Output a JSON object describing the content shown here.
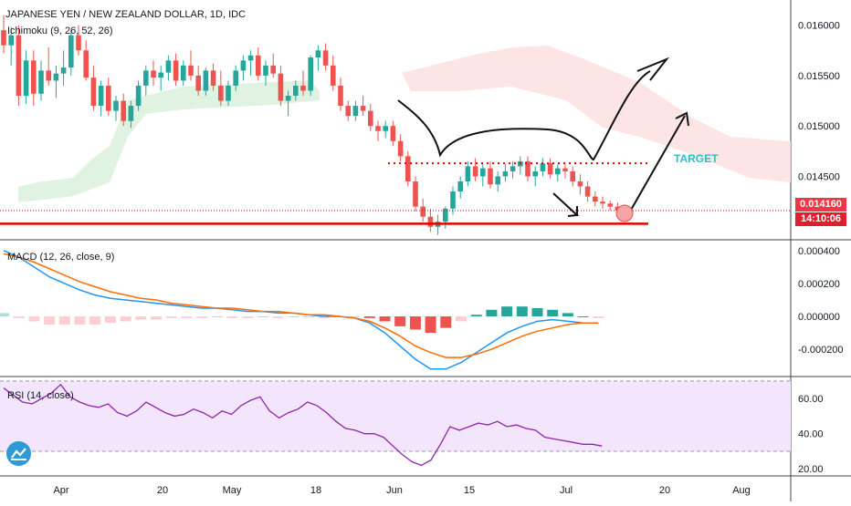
{
  "header": {
    "title": "JAPANESE YEN / NEW ZEALAND DOLLAR, 1D, IDC",
    "ichimoku_label": "Ichimoku (9, 26, 52, 26)",
    "macd_label": "MACD (12, 26, close, 9)",
    "rsi_label": "RSI (14, close)"
  },
  "annotation": {
    "target_label": "TARGET"
  },
  "price_tags": {
    "last_price": "0.014160",
    "countdown": "14:10:06"
  },
  "colors": {
    "up": "#26a69a",
    "down": "#ef5350",
    "macd_line": "#2196f3",
    "signal_line": "#ff6d00",
    "rsi_line": "#8e24aa",
    "rsi_band": "#f3e5fc",
    "cloud_bull": "#d8efd9",
    "cloud_bear": "#fde0e0",
    "accent_red": "#e00000",
    "target_text": "#2bbcc4"
  },
  "chart_data": [
    {
      "type": "candlestick",
      "title": "JAPANESE YEN / NEW ZEALAND DOLLAR, 1D, IDC",
      "y_ticks": [
        "0.016000",
        "0.015500",
        "0.015000",
        "0.014500"
      ],
      "ylim": [
        0.01388,
        0.01625
      ],
      "x_ticks": [
        "Apr",
        "20",
        "May",
        "18",
        "Jun",
        "15",
        "Jul",
        "20",
        "Aug"
      ],
      "x_tick_days": [
        3,
        22,
        31,
        50,
        64,
        79,
        93,
        108,
        121
      ],
      "dates_note": "day numbers counted from 2020-03-01 (Apr = day 31 offset handled by tick list)",
      "ohlc": [
        [
          0.01595,
          0.0161,
          0.01572,
          0.0158
        ],
        [
          0.0158,
          0.01598,
          0.0156,
          0.0159
        ],
        [
          0.0159,
          0.016,
          0.0152,
          0.0153
        ],
        [
          0.0153,
          0.01575,
          0.01522,
          0.01565
        ],
        [
          0.01565,
          0.01575,
          0.0152,
          0.01532
        ],
        [
          0.01532,
          0.01565,
          0.01525,
          0.01555
        ],
        [
          0.01555,
          0.01578,
          0.0154,
          0.01545
        ],
        [
          0.01545,
          0.0156,
          0.01528,
          0.01552
        ],
        [
          0.01552,
          0.01575,
          0.0154,
          0.01558
        ],
        [
          0.01558,
          0.01595,
          0.0155,
          0.0159
        ],
        [
          0.0159,
          0.016,
          0.0157,
          0.01575
        ],
        [
          0.01575,
          0.01585,
          0.01545,
          0.01548
        ],
        [
          0.01548,
          0.0156,
          0.01515,
          0.0152
        ],
        [
          0.0152,
          0.01545,
          0.0151,
          0.0154
        ],
        [
          0.0154,
          0.01548,
          0.0151,
          0.01515
        ],
        [
          0.01515,
          0.0153,
          0.01505,
          0.01525
        ],
        [
          0.01525,
          0.01532,
          0.015,
          0.01505
        ],
        [
          0.01505,
          0.01525,
          0.01498,
          0.0152
        ],
        [
          0.0152,
          0.01545,
          0.01515,
          0.0154
        ],
        [
          0.0154,
          0.0156,
          0.0153,
          0.01555
        ],
        [
          0.01555,
          0.01565,
          0.0154,
          0.01548
        ],
        [
          0.01548,
          0.0156,
          0.01535,
          0.01553
        ],
        [
          0.01553,
          0.0157,
          0.01545,
          0.01565
        ],
        [
          0.01565,
          0.01572,
          0.0154,
          0.01545
        ],
        [
          0.01545,
          0.01565,
          0.0154,
          0.0156
        ],
        [
          0.0156,
          0.01575,
          0.01545,
          0.0155
        ],
        [
          0.0155,
          0.0156,
          0.0153,
          0.01535
        ],
        [
          0.01535,
          0.01558,
          0.0153,
          0.01555
        ],
        [
          0.01555,
          0.01562,
          0.01535,
          0.0154
        ],
        [
          0.0154,
          0.01555,
          0.0152,
          0.01525
        ],
        [
          0.01525,
          0.01545,
          0.0152,
          0.0154
        ],
        [
          0.0154,
          0.0156,
          0.01535,
          0.01555
        ],
        [
          0.01555,
          0.0157,
          0.01545,
          0.01565
        ],
        [
          0.01565,
          0.01575,
          0.0155,
          0.0157
        ],
        [
          0.0157,
          0.01578,
          0.01545,
          0.0155
        ],
        [
          0.0155,
          0.01565,
          0.0154,
          0.0156
        ],
        [
          0.0156,
          0.01572,
          0.01548,
          0.01552
        ],
        [
          0.01552,
          0.0156,
          0.0152,
          0.01525
        ],
        [
          0.01525,
          0.01535,
          0.0151,
          0.0153
        ],
        [
          0.0153,
          0.01545,
          0.01525,
          0.0154
        ],
        [
          0.0154,
          0.01555,
          0.0153,
          0.01535
        ],
        [
          0.01535,
          0.0157,
          0.0153,
          0.01568
        ],
        [
          0.01568,
          0.0158,
          0.01555,
          0.01575
        ],
        [
          0.01575,
          0.01582,
          0.01555,
          0.0156
        ],
        [
          0.0156,
          0.0157,
          0.01535,
          0.0154
        ],
        [
          0.0154,
          0.01548,
          0.01515,
          0.0152
        ],
        [
          0.0152,
          0.01525,
          0.01505,
          0.0151
        ],
        [
          0.0151,
          0.01525,
          0.01505,
          0.0152
        ],
        [
          0.0152,
          0.0153,
          0.0151,
          0.01515
        ],
        [
          0.01515,
          0.01522,
          0.01495,
          0.015
        ],
        [
          0.015,
          0.01505,
          0.01485,
          0.01495
        ],
        [
          0.01495,
          0.01505,
          0.01488,
          0.015
        ],
        [
          0.015,
          0.01505,
          0.0148,
          0.01485
        ],
        [
          0.01485,
          0.01492,
          0.01465,
          0.0147
        ],
        [
          0.0147,
          0.01475,
          0.0144,
          0.01445
        ],
        [
          0.01445,
          0.0145,
          0.01415,
          0.0142
        ],
        [
          0.0142,
          0.01428,
          0.01405,
          0.0141
        ],
        [
          0.0141,
          0.01418,
          0.01395,
          0.014
        ],
        [
          0.014,
          0.01412,
          0.01392,
          0.01405
        ],
        [
          0.01405,
          0.0142,
          0.01398,
          0.01418
        ],
        [
          0.01418,
          0.0144,
          0.01412,
          0.01435
        ],
        [
          0.01435,
          0.0145,
          0.01428,
          0.01445
        ],
        [
          0.01445,
          0.01465,
          0.0144,
          0.0146
        ],
        [
          0.0146,
          0.01468,
          0.01445,
          0.0145
        ],
        [
          0.0145,
          0.01462,
          0.0144,
          0.01458
        ],
        [
          0.01458,
          0.01465,
          0.01438,
          0.01442
        ],
        [
          0.01442,
          0.01455,
          0.01435,
          0.0145
        ],
        [
          0.0145,
          0.01462,
          0.01445,
          0.01455
        ],
        [
          0.01455,
          0.01465,
          0.01448,
          0.0146
        ],
        [
          0.0146,
          0.0147,
          0.01452,
          0.01465
        ],
        [
          0.01465,
          0.0147,
          0.01445,
          0.0145
        ],
        [
          0.0145,
          0.0146,
          0.0144,
          0.01455
        ],
        [
          0.01455,
          0.01468,
          0.0145,
          0.01463
        ],
        [
          0.01463,
          0.01468,
          0.01448,
          0.01452
        ],
        [
          0.01452,
          0.01462,
          0.01445,
          0.01458
        ],
        [
          0.01458,
          0.01462,
          0.01448,
          0.01455
        ],
        [
          0.01455,
          0.0146,
          0.0144,
          0.01445
        ],
        [
          0.01445,
          0.01452,
          0.01432,
          0.0144
        ],
        [
          0.0144,
          0.01445,
          0.01425,
          0.0143
        ],
        [
          0.0143,
          0.01435,
          0.0142,
          0.01425
        ],
        [
          0.01425,
          0.0143,
          0.01418,
          0.01423
        ],
        [
          0.01423,
          0.01426,
          0.01416,
          0.0142
        ],
        [
          0.0142,
          0.01424,
          0.01413,
          0.01416
        ]
      ],
      "last_price": 0.01416,
      "horizontal_lines": [
        {
          "value": 0.01403,
          "style": "solid"
        },
        {
          "value": 0.01463,
          "style": "dotted"
        },
        {
          "value": 0.01416,
          "style": "dotted"
        }
      ]
    },
    {
      "type": "line",
      "title": "MACD (12, 26, close, 9)",
      "y_ticks": [
        "0.000400",
        "0.000200",
        "0.000000",
        "-0.000200"
      ],
      "ylim": [
        -0.00036,
        0.00046
      ],
      "series": [
        {
          "values": [
            0.0004,
            0.00036,
            0.0003,
            0.00024,
            0.0002,
            0.00016,
            0.00013,
            0.00011,
            0.0001,
            9e-05,
            8e-05,
            7e-05,
            6e-05,
            5e-05,
            5e-05,
            4e-05,
            3e-05,
            3e-05,
            2e-05,
            2e-05,
            1e-05,
            0.0,
            0.0,
            -1e-05,
            -4e-05,
            -0.0001,
            -0.00018,
            -0.00026,
            -0.00032,
            -0.00032,
            -0.00028,
            -0.00022,
            -0.00016,
            -0.0001,
            -6e-05,
            -3e-05,
            -2e-05,
            -3e-05,
            -4e-05,
            -4e-05
          ]
        },
        {
          "values": [
            0.00038,
            0.00036,
            0.00033,
            0.00029,
            0.00025,
            0.00021,
            0.00018,
            0.00015,
            0.00013,
            0.00011,
            0.0001,
            8e-05,
            7e-05,
            6e-05,
            5e-05,
            5e-05,
            4e-05,
            3e-05,
            3e-05,
            2e-05,
            1e-05,
            1e-05,
            0.0,
            -1e-05,
            -3e-05,
            -7e-05,
            -0.00012,
            -0.00018,
            -0.00022,
            -0.00025,
            -0.00025,
            -0.00023,
            -0.0002,
            -0.00016,
            -0.00012,
            -9e-05,
            -7e-05,
            -5e-05,
            -4e-05,
            -4e-05
          ]
        }
      ],
      "histogram": [
        2e-05,
        -1e-05,
        -3e-05,
        -5e-05,
        -5e-05,
        -5e-05,
        -5e-05,
        -4e-05,
        -3e-05,
        -2e-05,
        -2e-05,
        -1e-05,
        -1e-05,
        -1e-05,
        0.0,
        -1e-05,
        -1e-05,
        0.0,
        -1e-05,
        0.0,
        0.0,
        -1e-05,
        0.0,
        0.0,
        -1e-05,
        -3e-05,
        -6e-05,
        -8e-05,
        -0.0001,
        -7e-05,
        -3e-05,
        1e-05,
        4e-05,
        6e-05,
        6e-05,
        5e-05,
        4e-05,
        2e-05,
        0.0,
        -1e-05
      ]
    },
    {
      "type": "line",
      "title": "RSI (14, close)",
      "y_ticks": [
        "60.00",
        "40.00",
        "20.00"
      ],
      "ylim": [
        17,
        71
      ],
      "band": [
        30,
        70
      ],
      "values": [
        66,
        62,
        58,
        57,
        60,
        63,
        68,
        61,
        58,
        56,
        55,
        57,
        52,
        50,
        53,
        58,
        55,
        52,
        50,
        51,
        54,
        52,
        49,
        53,
        51,
        56,
        59,
        61,
        53,
        49,
        52,
        54,
        58,
        56,
        52,
        47,
        43,
        42,
        40,
        40,
        38,
        33,
        28,
        24,
        22,
        25,
        34,
        44,
        42,
        44,
        46,
        45,
        47,
        44,
        45,
        43,
        42,
        38,
        37,
        36,
        35,
        34,
        34,
        33
      ]
    }
  ]
}
